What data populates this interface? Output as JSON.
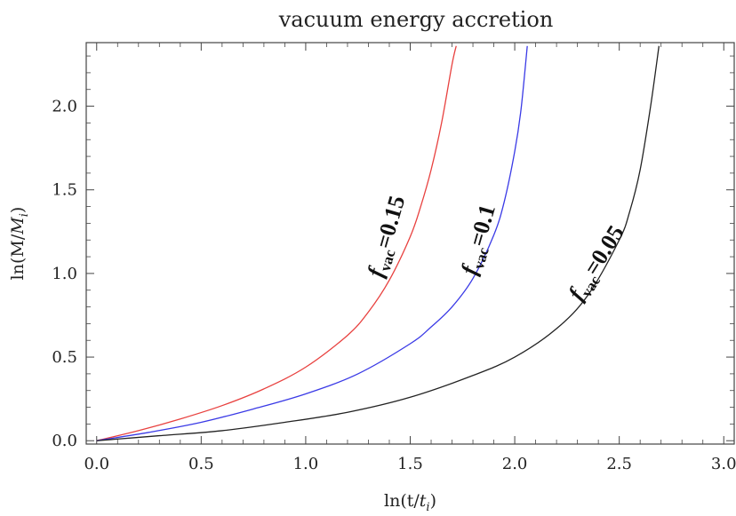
{
  "chart_data": {
    "type": "line",
    "title": "vacuum energy accretion",
    "xlabel": "ln(t/t_i)",
    "ylabel": "ln(M/M_i)",
    "xlim": [
      -0.05,
      3.05
    ],
    "ylim": [
      -0.02,
      2.38
    ],
    "x_ticks": [
      "0.0",
      "0.5",
      "1.0",
      "1.5",
      "2.0",
      "2.5",
      "3.0"
    ],
    "y_ticks": [
      "0.0",
      "0.5",
      "1.0",
      "1.5",
      "2.0"
    ],
    "grid": false,
    "legend": "none",
    "series": [
      {
        "name": "f_vac=0.15",
        "color": "#e8413f",
        "x": [
          0,
          0.2,
          0.4,
          0.6,
          0.8,
          1.0,
          1.2,
          1.3,
          1.4,
          1.5,
          1.55,
          1.6,
          1.65,
          1.7,
          1.72
        ],
        "y": [
          0,
          0.06,
          0.13,
          0.21,
          0.31,
          0.44,
          0.63,
          0.77,
          0.96,
          1.22,
          1.4,
          1.62,
          1.9,
          2.25,
          2.36
        ]
      },
      {
        "name": "f_vac=0.1",
        "color": "#3a3ae6",
        "x": [
          0,
          0.25,
          0.5,
          0.75,
          1.0,
          1.25,
          1.5,
          1.6,
          1.7,
          1.8,
          1.9,
          1.95,
          2.0,
          2.03,
          2.06
        ],
        "y": [
          0,
          0.05,
          0.11,
          0.19,
          0.28,
          0.4,
          0.58,
          0.68,
          0.8,
          0.97,
          1.23,
          1.43,
          1.73,
          1.98,
          2.36
        ]
      },
      {
        "name": "f_vac=0.05",
        "color": "#222222",
        "x": [
          0,
          0.3,
          0.6,
          0.9,
          1.2,
          1.5,
          1.8,
          2.0,
          2.2,
          2.35,
          2.5,
          2.55,
          2.6,
          2.65,
          2.69
        ],
        "y": [
          0,
          0.03,
          0.06,
          0.11,
          0.17,
          0.26,
          0.39,
          0.5,
          0.67,
          0.87,
          1.2,
          1.37,
          1.62,
          2.0,
          2.36
        ]
      }
    ],
    "annotations": [
      {
        "main": "f",
        "sub": "vac",
        "value": "=0.15",
        "x": 1.42,
        "y": 1.21,
        "angle": -74
      },
      {
        "main": "f",
        "sub": "vac",
        "value": "=0.1",
        "x": 1.86,
        "y": 1.19,
        "angle": -74
      },
      {
        "main": "f",
        "sub": "vac",
        "value": "=0.05",
        "x": 2.42,
        "y": 1.04,
        "angle": -58
      }
    ]
  }
}
